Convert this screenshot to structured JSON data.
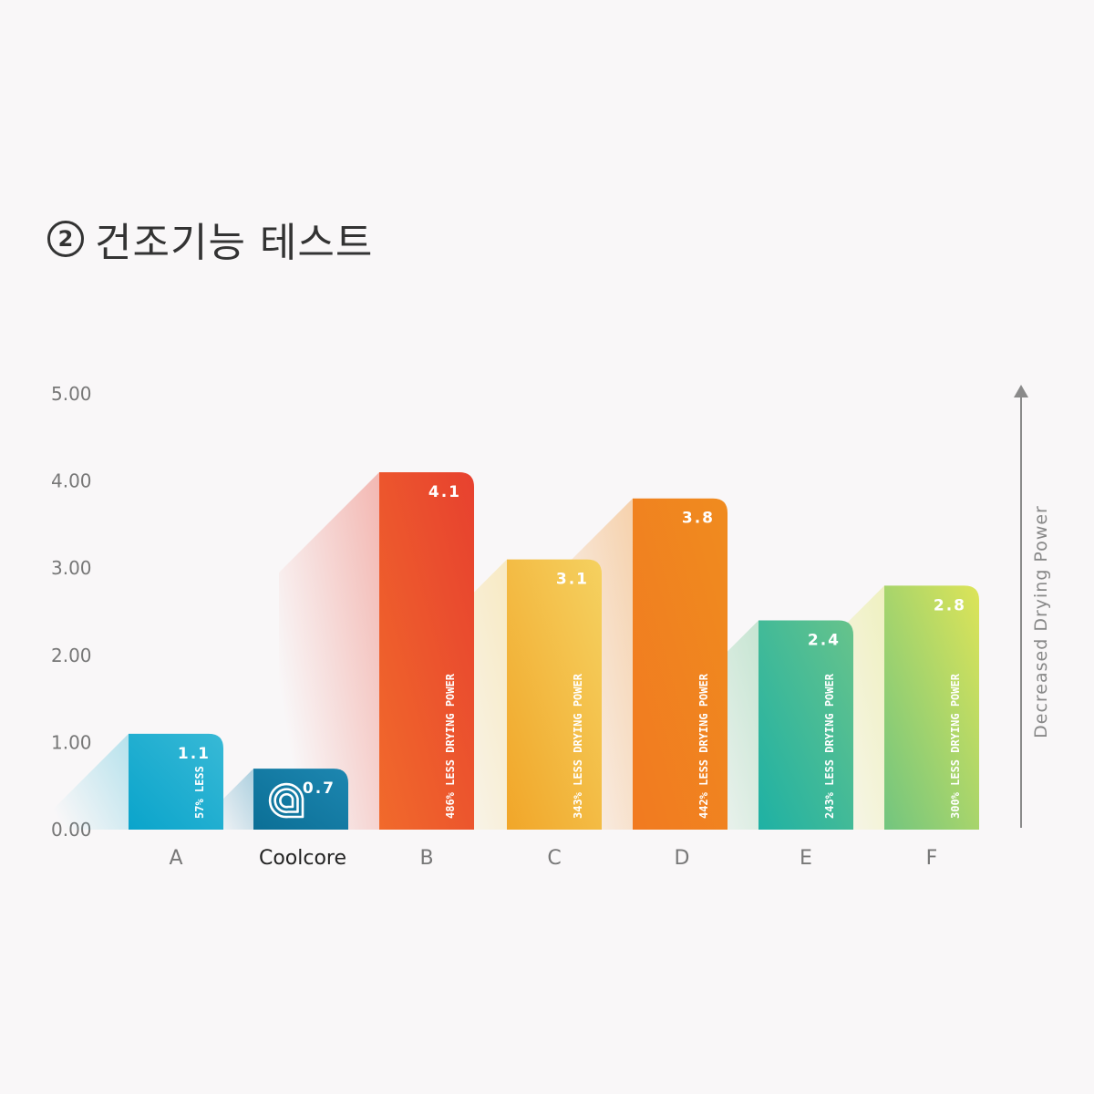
{
  "page": {
    "circle_number": "2",
    "title": "건조기능 테스트"
  },
  "chart_data": {
    "type": "bar",
    "title": "② 건조기능 테스트",
    "ylabel": "Decreased Drying Power",
    "ylim": [
      0,
      5
    ],
    "yticks": [
      "0.00",
      "1.00",
      "2.00",
      "3.00",
      "4.00",
      "5.00"
    ],
    "grid": false,
    "categories": [
      "A",
      "Coolcore",
      "B",
      "C",
      "D",
      "E",
      "F"
    ],
    "values": [
      1.1,
      0.7,
      4.1,
      3.1,
      3.8,
      2.4,
      2.8
    ],
    "value_labels": [
      "1.1",
      "0.7",
      "4.1",
      "3.1",
      "3.8",
      "2.4",
      "2.8"
    ],
    "annotations": [
      "57% LESS",
      "",
      "486% LESS DRYING POWER",
      "343% LESS DRYING POWER",
      "442% LESS DRYING POWER",
      "243% LESS DRYING POWER",
      "300% LESS DRYING POWER"
    ],
    "highlight": "Coolcore",
    "colors": [
      [
        "#38b9d6",
        "#0aa4cb"
      ],
      [
        "#1d86b0",
        "#0b6f96"
      ],
      [
        "#e7412f",
        "#f16a2b"
      ],
      [
        "#f5d160",
        "#f1a629"
      ],
      [
        "#f08b1f",
        "#f17a20"
      ],
      [
        "#67c38b",
        "#1eb1a4"
      ],
      [
        "#dde458",
        "#72c57f"
      ]
    ],
    "icons": [
      "",
      "coolcore-logo-icon",
      "",
      "",
      "",
      "",
      ""
    ]
  }
}
